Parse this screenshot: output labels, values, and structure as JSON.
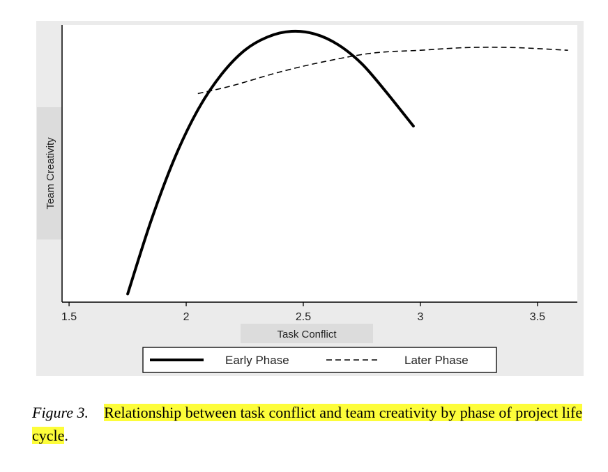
{
  "chart_data": {
    "type": "line",
    "title": "",
    "xlabel": "Task Conflict",
    "ylabel": "Team Creativity",
    "xlim": [
      1.47,
      3.67
    ],
    "ylim": [
      0,
      1
    ],
    "xticks": [
      "1.5",
      "2",
      "2.5",
      "3",
      "3.5"
    ],
    "y_tick_labels_shown": false,
    "grid": false,
    "legend_position": "bottom",
    "series": [
      {
        "name": "Early Phase",
        "style": "solid",
        "color": "#000000",
        "x": [
          1.75,
          1.85,
          1.95,
          2.05,
          2.15,
          2.25,
          2.35,
          2.45,
          2.55,
          2.65,
          2.75,
          2.85,
          2.97
        ],
        "y": [
          0.03,
          0.3,
          0.53,
          0.71,
          0.84,
          0.93,
          0.98,
          1.0,
          0.99,
          0.95,
          0.88,
          0.78,
          0.65
        ]
      },
      {
        "name": "Later Phase",
        "style": "dashed",
        "color": "#000000",
        "x": [
          2.05,
          2.2,
          2.4,
          2.6,
          2.8,
          3.0,
          3.2,
          3.4,
          3.63
        ],
        "y": [
          0.77,
          0.8,
          0.85,
          0.89,
          0.92,
          0.93,
          0.94,
          0.94,
          0.93
        ]
      }
    ]
  },
  "caption": {
    "label": "Figure 3.",
    "text": "Relationship between task conflict and team creativity by phase of project life cycle",
    "end": "."
  }
}
